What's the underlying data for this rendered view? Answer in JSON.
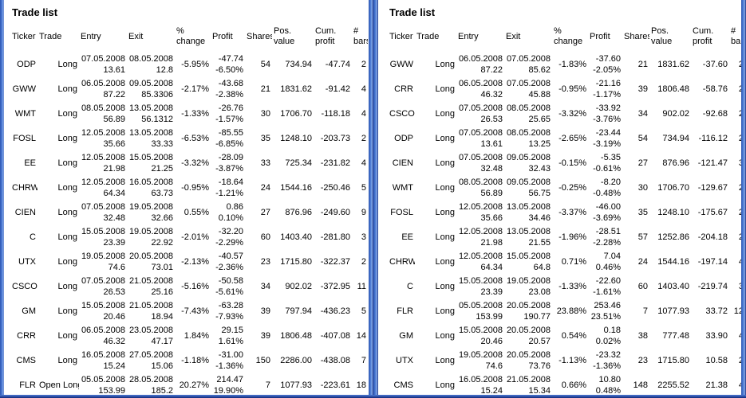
{
  "colors": {
    "border_blue": "#4d7bd4",
    "border_blue_light": "#86aae8",
    "border_blue_dark": "#13297c",
    "text": "#000000",
    "background": "#ffffff"
  },
  "panels": [
    {
      "title": "Trade list",
      "columns": [
        {
          "key": "ticker",
          "label": "Ticker"
        },
        {
          "key": "trade",
          "label": "Trade"
        },
        {
          "key": "entry",
          "label": "Entry"
        },
        {
          "key": "exit",
          "label": "Exit"
        },
        {
          "key": "pct",
          "label": "%\nchange"
        },
        {
          "key": "profit",
          "label": "Profit"
        },
        {
          "key": "shares",
          "label": "Shares"
        },
        {
          "key": "pos",
          "label": "Pos.\nvalue"
        },
        {
          "key": "cum",
          "label": "Cum.\nprofit"
        },
        {
          "key": "bars",
          "label": "#\nbars"
        }
      ],
      "rows": [
        {
          "ticker": "ODP",
          "trade": "Long",
          "entry_date": "07.05.2008",
          "entry_price": "13.61",
          "exit_date": "08.05.2008",
          "exit_price": "12.8",
          "pct_change": "-5.95%",
          "profit": "-47.74",
          "profit_pct": "-6.50%",
          "shares": "54",
          "pos_value": "734.94",
          "cum_profit": "-47.74",
          "bars": "2"
        },
        {
          "ticker": "GWW",
          "trade": "Long",
          "entry_date": "06.05.2008",
          "entry_price": "87.22",
          "exit_date": "09.05.2008",
          "exit_price": "85.3306",
          "pct_change": "-2.17%",
          "profit": "-43.68",
          "profit_pct": "-2.38%",
          "shares": "21",
          "pos_value": "1831.62",
          "cum_profit": "-91.42",
          "bars": "4"
        },
        {
          "ticker": "WMT",
          "trade": "Long",
          "entry_date": "08.05.2008",
          "entry_price": "56.89",
          "exit_date": "13.05.2008",
          "exit_price": "56.1312",
          "pct_change": "-1.33%",
          "profit": "-26.76",
          "profit_pct": "-1.57%",
          "shares": "30",
          "pos_value": "1706.70",
          "cum_profit": "-118.18",
          "bars": "4"
        },
        {
          "ticker": "FOSL",
          "trade": "Long",
          "entry_date": "12.05.2008",
          "entry_price": "35.66",
          "exit_date": "13.05.2008",
          "exit_price": "33.33",
          "pct_change": "-6.53%",
          "profit": "-85.55",
          "profit_pct": "-6.85%",
          "shares": "35",
          "pos_value": "1248.10",
          "cum_profit": "-203.73",
          "bars": "2"
        },
        {
          "ticker": "EE",
          "trade": "Long",
          "entry_date": "12.05.2008",
          "entry_price": "21.98",
          "exit_date": "15.05.2008",
          "exit_price": "21.25",
          "pct_change": "-3.32%",
          "profit": "-28.09",
          "profit_pct": "-3.87%",
          "shares": "33",
          "pos_value": "725.34",
          "cum_profit": "-231.82",
          "bars": "4"
        },
        {
          "ticker": "CHRW",
          "trade": "Long",
          "entry_date": "12.05.2008",
          "entry_price": "64.34",
          "exit_date": "16.05.2008",
          "exit_price": "63.73",
          "pct_change": "-0.95%",
          "profit": "-18.64",
          "profit_pct": "-1.21%",
          "shares": "24",
          "pos_value": "1544.16",
          "cum_profit": "-250.46",
          "bars": "5"
        },
        {
          "ticker": "CIEN",
          "trade": "Long",
          "entry_date": "07.05.2008",
          "entry_price": "32.48",
          "exit_date": "19.05.2008",
          "exit_price": "32.66",
          "pct_change": "0.55%",
          "profit": "0.86",
          "profit_pct": "0.10%",
          "shares": "27",
          "pos_value": "876.96",
          "cum_profit": "-249.60",
          "bars": "9"
        },
        {
          "ticker": "C",
          "trade": "Long",
          "entry_date": "15.05.2008",
          "entry_price": "23.39",
          "exit_date": "19.05.2008",
          "exit_price": "22.92",
          "pct_change": "-2.01%",
          "profit": "-32.20",
          "profit_pct": "-2.29%",
          "shares": "60",
          "pos_value": "1403.40",
          "cum_profit": "-281.80",
          "bars": "3"
        },
        {
          "ticker": "UTX",
          "trade": "Long",
          "entry_date": "19.05.2008",
          "entry_price": "74.6",
          "exit_date": "20.05.2008",
          "exit_price": "73.01",
          "pct_change": "-2.13%",
          "profit": "-40.57",
          "profit_pct": "-2.36%",
          "shares": "23",
          "pos_value": "1715.80",
          "cum_profit": "-322.37",
          "bars": "2"
        },
        {
          "ticker": "CSCO",
          "trade": "Long",
          "entry_date": "07.05.2008",
          "entry_price": "26.53",
          "exit_date": "21.05.2008",
          "exit_price": "25.16",
          "pct_change": "-5.16%",
          "profit": "-50.58",
          "profit_pct": "-5.61%",
          "shares": "34",
          "pos_value": "902.02",
          "cum_profit": "-372.95",
          "bars": "11"
        },
        {
          "ticker": "GM",
          "trade": "Long",
          "entry_date": "15.05.2008",
          "entry_price": "20.46",
          "exit_date": "21.05.2008",
          "exit_price": "18.94",
          "pct_change": "-7.43%",
          "profit": "-63.28",
          "profit_pct": "-7.93%",
          "shares": "39",
          "pos_value": "797.94",
          "cum_profit": "-436.23",
          "bars": "5"
        },
        {
          "ticker": "CRR",
          "trade": "Long",
          "entry_date": "06.05.2008",
          "entry_price": "46.32",
          "exit_date": "23.05.2008",
          "exit_price": "47.17",
          "pct_change": "1.84%",
          "profit": "29.15",
          "profit_pct": "1.61%",
          "shares": "39",
          "pos_value": "1806.48",
          "cum_profit": "-407.08",
          "bars": "14"
        },
        {
          "ticker": "CMS",
          "trade": "Long",
          "entry_date": "16.05.2008",
          "entry_price": "15.24",
          "exit_date": "27.05.2008",
          "exit_price": "15.06",
          "pct_change": "-1.18%",
          "profit": "-31.00",
          "profit_pct": "-1.36%",
          "shares": "150",
          "pos_value": "2286.00",
          "cum_profit": "-438.08",
          "bars": "7"
        },
        {
          "ticker": "FLR",
          "trade": "Open Long",
          "entry_date": "05.05.2008",
          "entry_price": "153.99",
          "exit_date": "28.05.2008",
          "exit_price": "185.2",
          "pct_change": "20.27%",
          "profit": "214.47",
          "profit_pct": "19.90%",
          "shares": "7",
          "pos_value": "1077.93",
          "cum_profit": "-223.61",
          "bars": "18"
        }
      ]
    },
    {
      "title": "Trade list",
      "columns": [
        {
          "key": "ticker",
          "label": "Ticker"
        },
        {
          "key": "trade",
          "label": "Trade"
        },
        {
          "key": "entry",
          "label": "Entry"
        },
        {
          "key": "exit",
          "label": "Exit"
        },
        {
          "key": "pct",
          "label": "%\nchange"
        },
        {
          "key": "profit",
          "label": "Profit"
        },
        {
          "key": "shares",
          "label": "Shares"
        },
        {
          "key": "pos",
          "label": "Pos.\nvalue"
        },
        {
          "key": "cum",
          "label": "Cum.\nprofit"
        },
        {
          "key": "bars",
          "label": "#\nbars"
        }
      ],
      "rows": [
        {
          "ticker": "GWW",
          "trade": "Long",
          "entry_date": "06.05.2008",
          "entry_price": "87.22",
          "exit_date": "07.05.2008",
          "exit_price": "85.62",
          "pct_change": "-1.83%",
          "profit": "-37.60",
          "profit_pct": "-2.05%",
          "shares": "21",
          "pos_value": "1831.62",
          "cum_profit": "-37.60",
          "bars": "2"
        },
        {
          "ticker": "CRR",
          "trade": "Long",
          "entry_date": "06.05.2008",
          "entry_price": "46.32",
          "exit_date": "07.05.2008",
          "exit_price": "45.88",
          "pct_change": "-0.95%",
          "profit": "-21.16",
          "profit_pct": "-1.17%",
          "shares": "39",
          "pos_value": "1806.48",
          "cum_profit": "-58.76",
          "bars": "2"
        },
        {
          "ticker": "CSCO",
          "trade": "Long",
          "entry_date": "07.05.2008",
          "entry_price": "26.53",
          "exit_date": "08.05.2008",
          "exit_price": "25.65",
          "pct_change": "-3.32%",
          "profit": "-33.92",
          "profit_pct": "-3.76%",
          "shares": "34",
          "pos_value": "902.02",
          "cum_profit": "-92.68",
          "bars": "2"
        },
        {
          "ticker": "ODP",
          "trade": "Long",
          "entry_date": "07.05.2008",
          "entry_price": "13.61",
          "exit_date": "08.05.2008",
          "exit_price": "13.25",
          "pct_change": "-2.65%",
          "profit": "-23.44",
          "profit_pct": "-3.19%",
          "shares": "54",
          "pos_value": "734.94",
          "cum_profit": "-116.12",
          "bars": "2"
        },
        {
          "ticker": "CIEN",
          "trade": "Long",
          "entry_date": "07.05.2008",
          "entry_price": "32.48",
          "exit_date": "09.05.2008",
          "exit_price": "32.43",
          "pct_change": "-0.15%",
          "profit": "-5.35",
          "profit_pct": "-0.61%",
          "shares": "27",
          "pos_value": "876.96",
          "cum_profit": "-121.47",
          "bars": "3"
        },
        {
          "ticker": "WMT",
          "trade": "Long",
          "entry_date": "08.05.2008",
          "entry_price": "56.89",
          "exit_date": "09.05.2008",
          "exit_price": "56.75",
          "pct_change": "-0.25%",
          "profit": "-8.20",
          "profit_pct": "-0.48%",
          "shares": "30",
          "pos_value": "1706.70",
          "cum_profit": "-129.67",
          "bars": "2"
        },
        {
          "ticker": "FOSL",
          "trade": "Long",
          "entry_date": "12.05.2008",
          "entry_price": "35.66",
          "exit_date": "13.05.2008",
          "exit_price": "34.46",
          "pct_change": "-3.37%",
          "profit": "-46.00",
          "profit_pct": "-3.69%",
          "shares": "35",
          "pos_value": "1248.10",
          "cum_profit": "-175.67",
          "bars": "2"
        },
        {
          "ticker": "EE",
          "trade": "Long",
          "entry_date": "12.05.2008",
          "entry_price": "21.98",
          "exit_date": "13.05.2008",
          "exit_price": "21.55",
          "pct_change": "-1.96%",
          "profit": "-28.51",
          "profit_pct": "-2.28%",
          "shares": "57",
          "pos_value": "1252.86",
          "cum_profit": "-204.18",
          "bars": "2"
        },
        {
          "ticker": "CHRW",
          "trade": "Long",
          "entry_date": "12.05.2008",
          "entry_price": "64.34",
          "exit_date": "15.05.2008",
          "exit_price": "64.8",
          "pct_change": "0.71%",
          "profit": "7.04",
          "profit_pct": "0.46%",
          "shares": "24",
          "pos_value": "1544.16",
          "cum_profit": "-197.14",
          "bars": "4"
        },
        {
          "ticker": "C",
          "trade": "Long",
          "entry_date": "15.05.2008",
          "entry_price": "23.39",
          "exit_date": "19.05.2008",
          "exit_price": "23.08",
          "pct_change": "-1.33%",
          "profit": "-22.60",
          "profit_pct": "-1.61%",
          "shares": "60",
          "pos_value": "1403.40",
          "cum_profit": "-219.74",
          "bars": "3"
        },
        {
          "ticker": "FLR",
          "trade": "Long",
          "entry_date": "05.05.2008",
          "entry_price": "153.99",
          "exit_date": "20.05.2008",
          "exit_price": "190.77",
          "pct_change": "23.88%",
          "profit": "253.46",
          "profit_pct": "23.51%",
          "shares": "7",
          "pos_value": "1077.93",
          "cum_profit": "33.72",
          "bars": "12"
        },
        {
          "ticker": "GM",
          "trade": "Long",
          "entry_date": "15.05.2008",
          "entry_price": "20.46",
          "exit_date": "20.05.2008",
          "exit_price": "20.57",
          "pct_change": "0.54%",
          "profit": "0.18",
          "profit_pct": "0.02%",
          "shares": "38",
          "pos_value": "777.48",
          "cum_profit": "33.90",
          "bars": "4"
        },
        {
          "ticker": "UTX",
          "trade": "Long",
          "entry_date": "19.05.2008",
          "entry_price": "74.6",
          "exit_date": "20.05.2008",
          "exit_price": "73.76",
          "pct_change": "-1.13%",
          "profit": "-23.32",
          "profit_pct": "-1.36%",
          "shares": "23",
          "pos_value": "1715.80",
          "cum_profit": "10.58",
          "bars": "2"
        },
        {
          "ticker": "CMS",
          "trade": "Long",
          "entry_date": "16.05.2008",
          "entry_price": "15.24",
          "exit_date": "21.05.2008",
          "exit_price": "15.34",
          "pct_change": "0.66%",
          "profit": "10.80",
          "profit_pct": "0.48%",
          "shares": "148",
          "pos_value": "2255.52",
          "cum_profit": "21.38",
          "bars": "4"
        }
      ]
    }
  ]
}
